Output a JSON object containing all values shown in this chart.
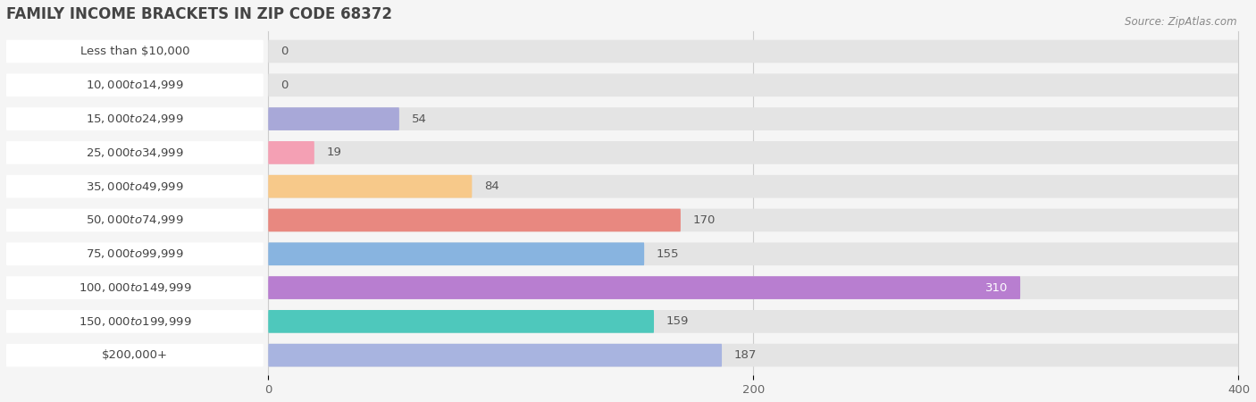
{
  "title": "FAMILY INCOME BRACKETS IN ZIP CODE 68372",
  "source": "Source: ZipAtlas.com",
  "categories": [
    "Less than $10,000",
    "$10,000 to $14,999",
    "$15,000 to $24,999",
    "$25,000 to $34,999",
    "$35,000 to $49,999",
    "$50,000 to $74,999",
    "$75,000 to $99,999",
    "$100,000 to $149,999",
    "$150,000 to $199,999",
    "$200,000+"
  ],
  "values": [
    0,
    0,
    54,
    19,
    84,
    170,
    155,
    310,
    159,
    187
  ],
  "bar_colors": [
    "#d4a8cc",
    "#6ecec4",
    "#a8a8d8",
    "#f4a0b4",
    "#f7c98a",
    "#e88880",
    "#88b4e0",
    "#b87ed0",
    "#4ec8bc",
    "#a8b4e0"
  ],
  "background_color": "#f5f5f5",
  "bar_bg_color": "#e4e4e4",
  "label_bg_color": "#ffffff",
  "xlim_max": 400,
  "xticks": [
    0,
    200,
    400
  ],
  "bar_height": 0.68,
  "label_fontsize": 9.5,
  "value_fontsize": 9.5,
  "title_fontsize": 12,
  "title_color": "#444444",
  "source_fontsize": 8.5,
  "source_color": "#888888",
  "inside_label_color": "#ffffff",
  "outside_label_color": "#555555",
  "inside_label_threshold": 300
}
